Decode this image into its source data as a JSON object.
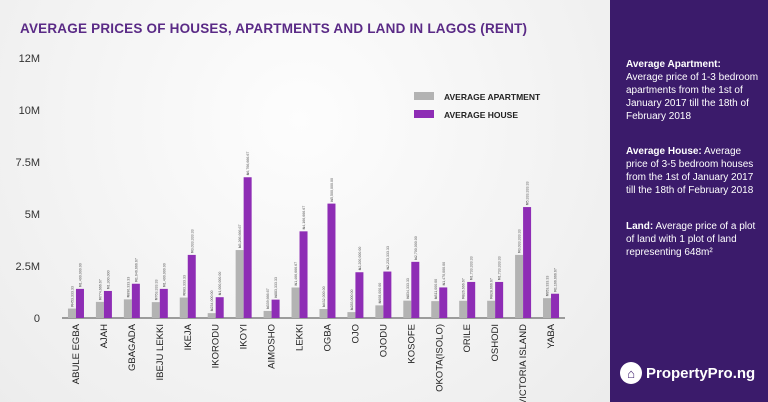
{
  "chart_data": {
    "type": "bar",
    "title": "AVERAGE PRICES OF HOUSES, APARTMENTS AND LAND IN LAGOS (RENT)",
    "yticks": [
      "0",
      "2.5M",
      "5M",
      "7.5M",
      "10M",
      "12M"
    ],
    "ylim": [
      0,
      12500000
    ],
    "legend_position": "top-right",
    "categories": [
      "ABULE EGBA",
      "AJAH",
      "GBAGADA",
      "IBEJU LEKKI",
      "IKEJA",
      "IKORODU",
      "IKOYI",
      "AIMOSHO",
      "LEKKI",
      "OGBA",
      "OJO",
      "OJODU",
      "KOSOFE",
      "OKOTA(ISOLO)",
      "ORILE",
      "OSHODI",
      "VICTORIA ISLAND",
      "YABA"
    ],
    "series": [
      {
        "name": "AVERAGE APARTMENT",
        "color": "#b3b3b3",
        "values": [
          453333,
          774667,
          896333,
          763333,
          983333,
          234000,
          3266667,
          339667,
          1466667,
          432000,
          283000,
          608000,
          834333,
          811000,
          826667,
          828667,
          3033333,
          953333
        ],
        "labels": [
          "₦453,333.33",
          "₦774,666.67",
          "₦896,333.33",
          "₦763,333.33",
          "₦983,333.33",
          "₦234,000.00",
          "₦3,266,666.67",
          "₦339,666.67",
          "₦1,466,666.67",
          "₦432,000.00",
          "₦283,000.00",
          "₦608,000.00",
          "₦834,333.33",
          "₦811,000.00",
          "₦826,666.67",
          "₦828,666.67",
          "₦3,033,333.33",
          "₦953,333.33"
        ]
      },
      {
        "name": "AVERAGE HOUSE",
        "color": "#8e2db5",
        "values": [
          1400000,
          1300000,
          1646667,
          1400000,
          3033333,
          1000000,
          6766667,
          883333,
          4166667,
          5500000,
          2200000,
          2233333,
          2700000,
          1470000,
          1733333,
          1733333,
          5333333,
          1166667
        ],
        "labels": [
          "₦1,400,000.00",
          "₦1,300,000",
          "₦1,646,666.67",
          "₦1,400,000.00",
          "₦3,033,333.33",
          "₦1,000,000.00",
          "₦6,766,666.67",
          "₦883,333.33",
          "₦4,166,666.67",
          "₦5,500,000.00",
          "₦2,200,000.00",
          "₦2,233,333.33",
          "₦2,700,000.00",
          "₦1,470,000.00",
          "₦1,733,333.33",
          "₦1,733,333.33",
          "₦5,333,333.33",
          "₦1,166,666.67"
        ]
      }
    ]
  },
  "sidebar": {
    "apt_head": "Average Apartment:",
    "apt_text": "Average price of 1-3 bedroom apartments from the 1st of January 2017 till the 18th of February 2018",
    "house_head": "Average House:",
    "house_text": "Average price of 3-5 bedroom houses from the 1st of January 2017 till the 18th of February 2018",
    "land_head": "Land:",
    "land_text": "Average price of a plot of land with 1 plot of land representing 648m²",
    "logo": "PropertyPro.ng"
  }
}
